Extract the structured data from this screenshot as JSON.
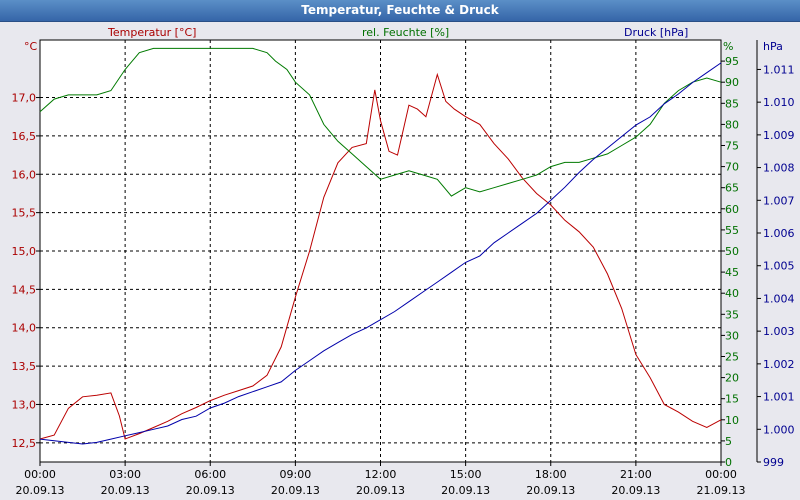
{
  "window": {
    "title": "Temperatur, Feuchte & Druck"
  },
  "chart_data": {
    "type": "line",
    "title": "Temperatur, Feuchte & Druck",
    "grid": true,
    "x": {
      "ticks": [
        {
          "time": "00:00",
          "date": "20.09.13"
        },
        {
          "time": "03:00",
          "date": "20.09.13"
        },
        {
          "time": "06:00",
          "date": "20.09.13"
        },
        {
          "time": "09:00",
          "date": "20.09.13"
        },
        {
          "time": "12:00",
          "date": "20.09.13"
        },
        {
          "time": "15:00",
          "date": "20.09.13"
        },
        {
          "time": "18:00",
          "date": "20.09.13"
        },
        {
          "time": "21:00",
          "date": "20.09.13"
        },
        {
          "time": "00:00",
          "date": "21.09.13"
        }
      ],
      "range_hours": [
        0,
        24
      ]
    },
    "axes": {
      "temperature": {
        "unit": "°C",
        "range": [
          12.25,
          17.75
        ],
        "ticks": [
          "12,5",
          "13,0",
          "13,5",
          "14,0",
          "14,5",
          "15,0",
          "15,5",
          "16,0",
          "16,5",
          "17,0"
        ],
        "tick_values": [
          12.5,
          13.0,
          13.5,
          14.0,
          14.5,
          15.0,
          15.5,
          16.0,
          16.5,
          17.0
        ],
        "color": "#aa0000"
      },
      "humidity": {
        "unit": "%",
        "range": [
          0,
          100
        ],
        "ticks": [
          "0",
          "5",
          "10",
          "15",
          "20",
          "25",
          "30",
          "35",
          "40",
          "45",
          "50",
          "55",
          "60",
          "65",
          "70",
          "75",
          "80",
          "85",
          "90",
          "95"
        ],
        "tick_values": [
          0,
          5,
          10,
          15,
          20,
          25,
          30,
          35,
          40,
          45,
          50,
          55,
          60,
          65,
          70,
          75,
          80,
          85,
          90,
          95
        ],
        "color": "#007000"
      },
      "pressure": {
        "unit": "hPa",
        "range": [
          999.0,
          1011.9
        ],
        "ticks": [
          "999",
          "1.000",
          "1.001",
          "1.002",
          "1.003",
          "1.004",
          "1.005",
          "1.006",
          "1.007",
          "1.008",
          "1.009",
          "1.010",
          "1.011"
        ],
        "tick_values": [
          999,
          1000,
          1001,
          1002,
          1003,
          1004,
          1005,
          1006,
          1007,
          1008,
          1009,
          1010,
          1011
        ],
        "color": "#000090"
      }
    },
    "series": [
      {
        "name": "Temperatur [°C]",
        "axis": "temperature",
        "color": "#bb0000",
        "x": [
          0,
          0.5,
          1,
          1.5,
          2,
          2.5,
          2.8,
          3,
          3.5,
          4,
          4.5,
          5,
          5.5,
          6,
          6.5,
          7,
          7.5,
          8,
          8.5,
          9,
          9.5,
          10,
          10.5,
          11,
          11.5,
          11.8,
          12,
          12.3,
          12.6,
          13,
          13.3,
          13.6,
          14,
          14.3,
          14.6,
          15,
          15.5,
          16,
          16.5,
          17,
          17.5,
          18,
          18.5,
          19,
          19.5,
          20,
          20.5,
          21,
          21.5,
          22,
          22.5,
          23,
          23.5,
          24
        ],
        "values": [
          12.55,
          12.6,
          12.95,
          13.1,
          13.12,
          13.15,
          12.85,
          12.55,
          12.62,
          12.7,
          12.78,
          12.88,
          12.96,
          13.05,
          13.12,
          13.18,
          13.24,
          13.38,
          13.75,
          14.4,
          15.0,
          15.7,
          16.15,
          16.35,
          16.4,
          17.1,
          16.7,
          16.3,
          16.25,
          16.9,
          16.85,
          16.75,
          17.3,
          16.95,
          16.85,
          16.75,
          16.65,
          16.4,
          16.2,
          15.95,
          15.75,
          15.6,
          15.4,
          15.25,
          15.05,
          14.7,
          14.25,
          13.65,
          13.35,
          13.0,
          12.9,
          12.78,
          12.7,
          12.8
        ]
      },
      {
        "name": "rel. Feuchte [%]",
        "axis": "humidity",
        "color": "#007a00",
        "x": [
          0,
          0.5,
          1,
          1.5,
          2,
          2.5,
          3,
          3.5,
          4,
          5,
          6,
          7,
          7.5,
          8,
          8.3,
          8.7,
          9,
          9.5,
          10,
          10.5,
          11,
          11.5,
          12,
          12.5,
          13,
          13.5,
          14,
          14.5,
          15,
          15.5,
          16,
          16.5,
          17,
          17.5,
          18,
          18.5,
          19,
          19.5,
          20,
          20.5,
          21,
          21.5,
          22,
          22.5,
          23,
          23.5,
          24
        ],
        "values": [
          83,
          86,
          87,
          87,
          87,
          88,
          93,
          97,
          98,
          98,
          98,
          98,
          98,
          97,
          95,
          93,
          90,
          87,
          80,
          76,
          73,
          70,
          67,
          68,
          69,
          68,
          67,
          63,
          65,
          64,
          65,
          66,
          67,
          68,
          70,
          71,
          71,
          72,
          73,
          75,
          77,
          80,
          85,
          88,
          90,
          91,
          90
        ]
      },
      {
        "name": "Druck [hPa]",
        "axis": "pressure",
        "color": "#0000aa",
        "x": [
          0,
          0.5,
          1,
          1.5,
          2,
          2.5,
          3,
          3.5,
          4,
          4.5,
          5,
          5.5,
          6,
          6.5,
          7,
          7.5,
          8,
          8.5,
          9,
          9.5,
          10,
          10.5,
          11,
          11.5,
          12,
          12.5,
          13,
          13.5,
          14,
          14.5,
          15,
          15.5,
          16,
          16.5,
          17,
          17.5,
          18,
          18.5,
          19,
          19.5,
          20,
          20.5,
          21,
          21.5,
          22,
          22.5,
          23,
          23.5,
          24
        ],
        "values": [
          999.7,
          999.65,
          999.6,
          999.55,
          999.6,
          999.7,
          999.8,
          999.9,
          1000.0,
          1000.1,
          1000.3,
          1000.4,
          1000.65,
          1000.8,
          1001.0,
          1001.15,
          1001.3,
          1001.45,
          1001.8,
          1002.1,
          1002.4,
          1002.65,
          1002.9,
          1003.1,
          1003.35,
          1003.6,
          1003.9,
          1004.2,
          1004.5,
          1004.8,
          1005.1,
          1005.3,
          1005.7,
          1006.0,
          1006.3,
          1006.6,
          1007.0,
          1007.4,
          1007.85,
          1008.25,
          1008.6,
          1008.95,
          1009.3,
          1009.55,
          1009.95,
          1010.25,
          1010.6,
          1010.9,
          1011.2
        ]
      }
    ]
  },
  "legend": {
    "temperature_label": "Temperatur [°C]",
    "humidity_label": "rel. Feuchte [%]",
    "pressure_label": "Druck [hPa]",
    "temperature_unit": "°C",
    "humidity_unit": "%",
    "pressure_unit": "hPa"
  }
}
